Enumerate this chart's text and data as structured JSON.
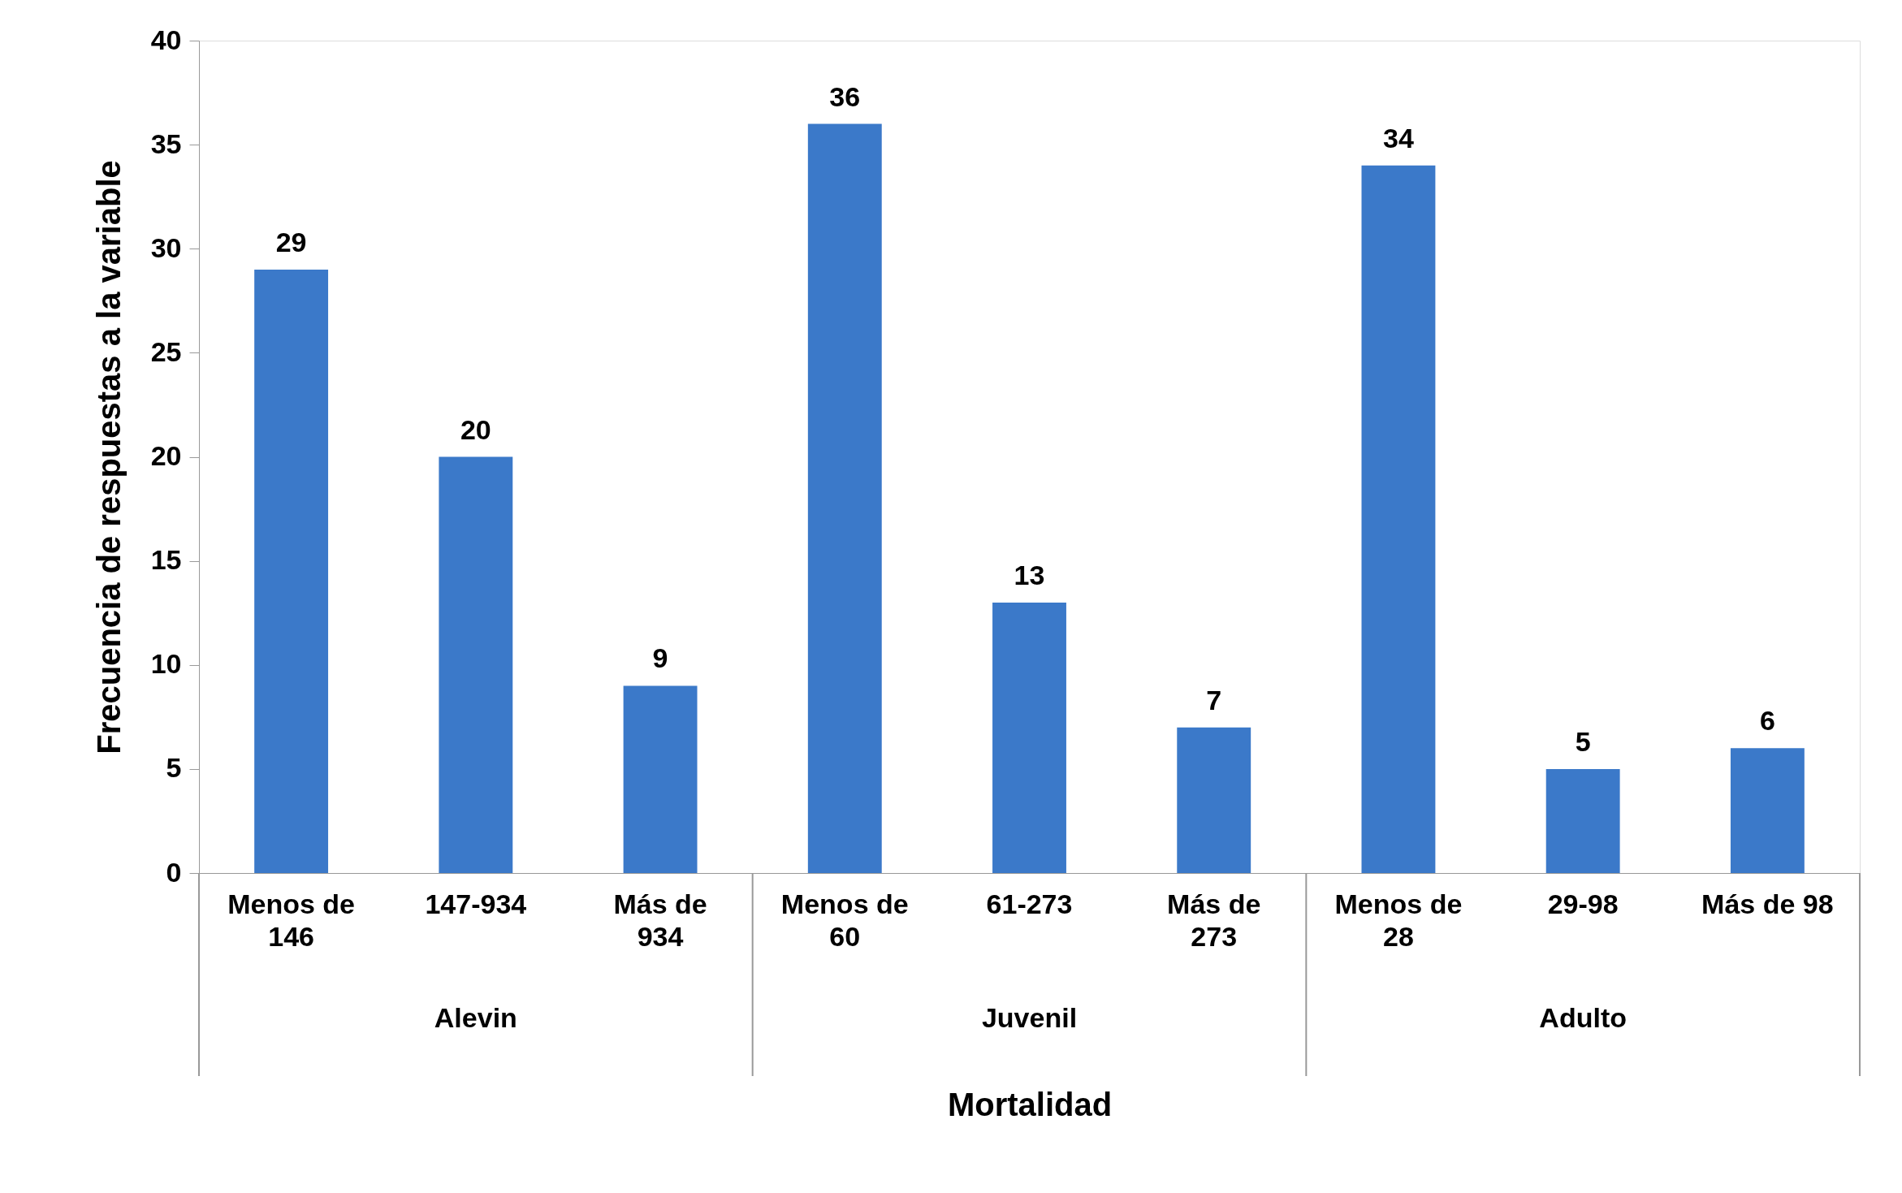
{
  "chart_data": {
    "type": "bar",
    "xlabel": "Mortalidad",
    "ylabel": "Frecuencia de respuestas  a la variable",
    "categories": [
      "Menos de 146",
      "147-934",
      "Más de 934",
      "Menos de 60",
      "61-273",
      "Más de 273",
      "Menos de 28",
      "29-98",
      "Más de 98"
    ],
    "values": [
      29,
      20,
      9,
      36,
      13,
      7,
      34,
      5,
      6
    ],
    "color": "#3b79c9",
    "ylim": [
      0,
      40
    ],
    "yticks": [
      0,
      5,
      10,
      15,
      20,
      25,
      30,
      35,
      40
    ],
    "grid": false,
    "data_labels": true,
    "annotations": [
      "Alevin",
      "Juvenil",
      "Adulto"
    ]
  }
}
